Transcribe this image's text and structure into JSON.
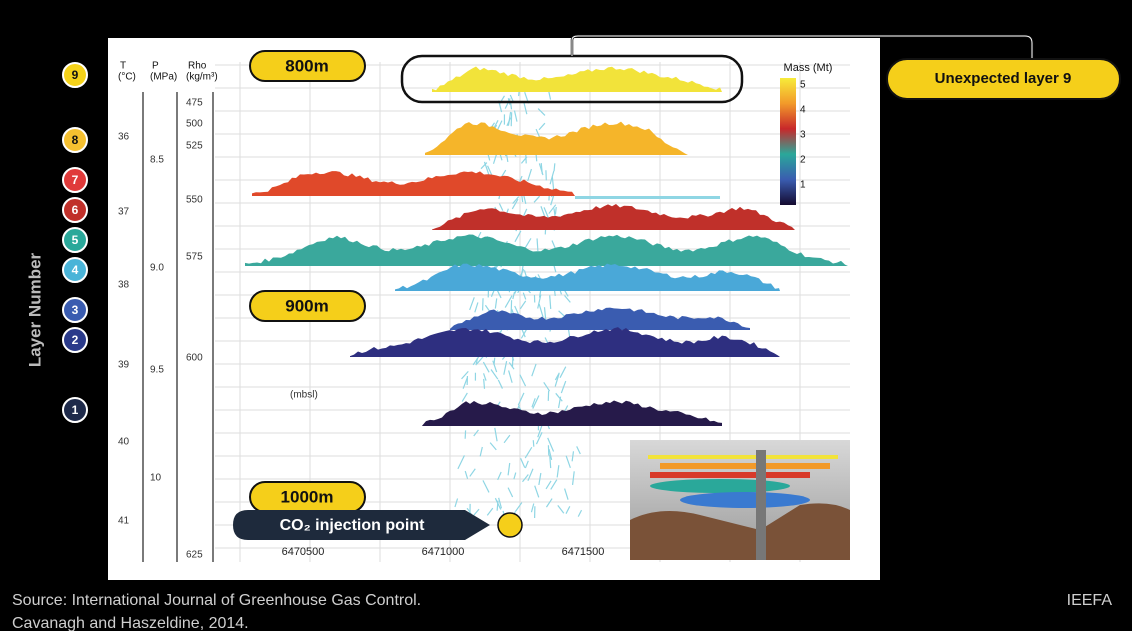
{
  "layer_axis": {
    "title": "Layer Number",
    "layers": [
      "9",
      "8",
      "7",
      "6",
      "5",
      "4",
      "3",
      "2",
      "1"
    ]
  },
  "columns": {
    "t": {
      "header": [
        "T",
        "(°C)"
      ],
      "values": [
        "36",
        "37",
        "38",
        "39",
        "40",
        "41"
      ]
    },
    "p": {
      "header": [
        "P",
        "(MPa)"
      ],
      "values": [
        "8.5",
        "9.0",
        "9.5",
        "10"
      ]
    },
    "rho": {
      "header": [
        "Rho",
        "(kg/m³)"
      ],
      "values": [
        "475",
        "500",
        "525",
        "550",
        "575",
        "600",
        "625"
      ]
    }
  },
  "depth_labels": [
    "800m",
    "900m",
    "1000m"
  ],
  "unit_note": "(mbsl)",
  "x_labels": [
    "6470500",
    "6471000",
    "6471500"
  ],
  "legend": {
    "title": "Mass (Mt)",
    "labels": [
      "5",
      "4",
      "3",
      "2",
      "1"
    ]
  },
  "callout": "Unexpected layer 9",
  "injection_label": "CO₂ injection point",
  "source": [
    "Source: International Journal of Greenhouse Gas Control.",
    "Cavanagh and Haszeldine, 2014."
  ],
  "brand": "IEEFA"
}
